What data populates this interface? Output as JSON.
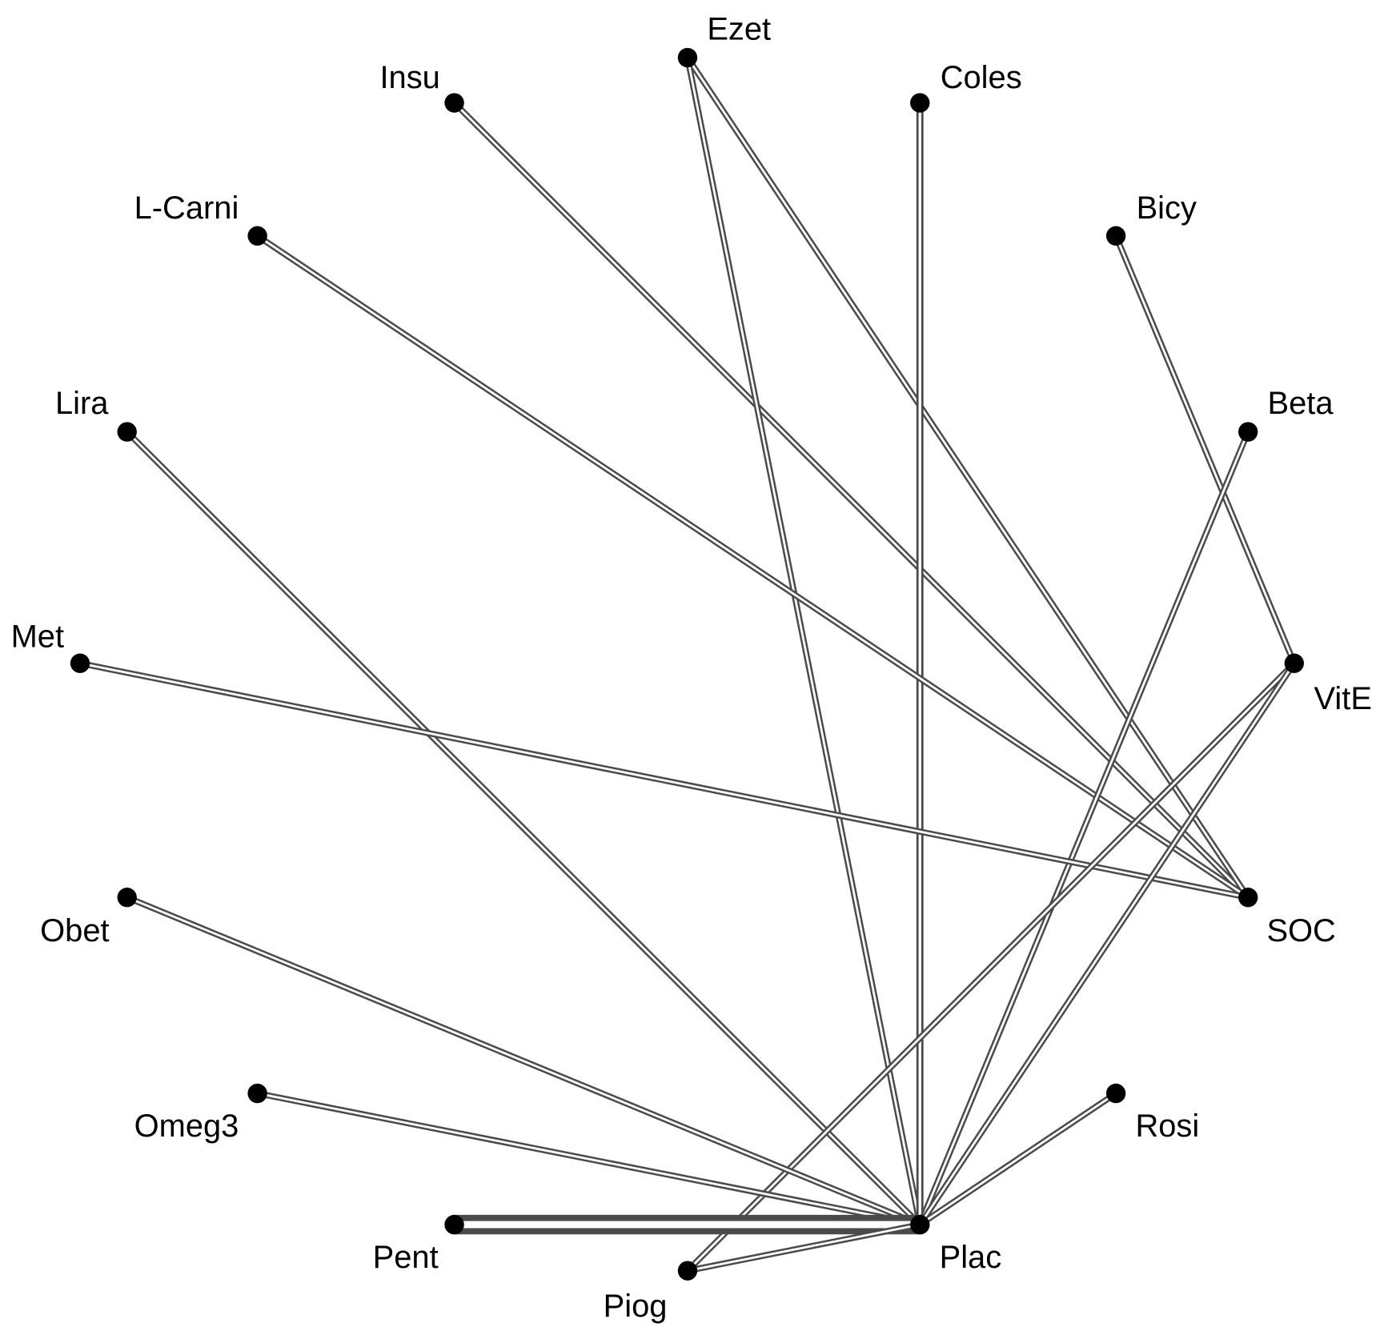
{
  "nodes": [
    {
      "label": "Ezet"
    },
    {
      "label": "Insu"
    },
    {
      "label": "Coles"
    },
    {
      "label": "L-Carni"
    },
    {
      "label": "Bicy"
    },
    {
      "label": "Lira"
    },
    {
      "label": "Beta"
    },
    {
      "label": "Met"
    },
    {
      "label": "VitE"
    },
    {
      "label": "Obet"
    },
    {
      "label": "SOC"
    },
    {
      "label": "Omeg3"
    },
    {
      "label": "Rosi"
    },
    {
      "label": "Pent"
    },
    {
      "label": "Plac"
    },
    {
      "label": "Piog"
    }
  ]
}
